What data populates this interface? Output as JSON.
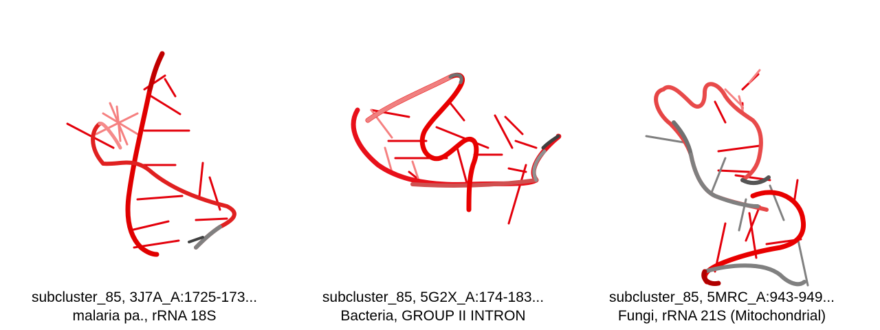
{
  "panels": [
    {
      "line1": "subcluster_85, 3J7A_A:1725-173...",
      "line2": "malaria pa., rRNA 18S"
    },
    {
      "line1": "subcluster_85, 5G2X_A:174-183...",
      "line2": "Bacteria, GROUP II INTRON"
    },
    {
      "line1": "subcluster_85, 5MRC_A:943-949...",
      "line2": "Fungi, rRNA 21S (Mitochondrial)"
    }
  ],
  "colors": {
    "highlight": "#e8000b",
    "light": "#f26a6a",
    "grey": "#808080",
    "dark": "#5a5a5a"
  }
}
